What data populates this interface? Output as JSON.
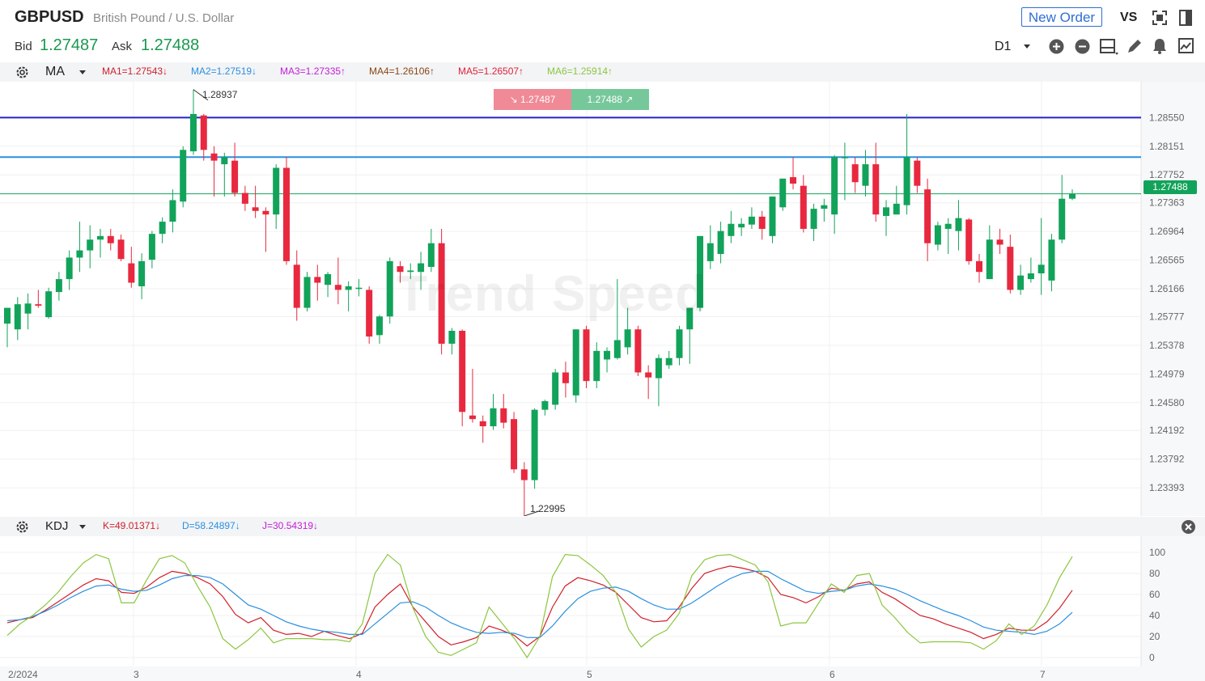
{
  "header": {
    "symbol": "GBPUSD",
    "description": "British Pound / U.S. Dollar",
    "bid_label": "Bid",
    "bid_value": "1.27487",
    "ask_label": "Ask",
    "ask_value": "1.27488",
    "new_order_label": "New Order",
    "vs_label": "VS",
    "timeframe": "D1"
  },
  "ma_bar": {
    "indicator": "MA",
    "items": [
      {
        "text": "MA1=1.27543↓",
        "color": "#d0202b"
      },
      {
        "text": "MA2=1.27519↓",
        "color": "#2a8fe0"
      },
      {
        "text": "MA3=1.27335↑",
        "color": "#c21fd4"
      },
      {
        "text": "MA4=1.26106↑",
        "color": "#8b4513"
      },
      {
        "text": "MA5=1.26507↑",
        "color": "#e0223b"
      },
      {
        "text": "MA6=1.25914↑",
        "color": "#8cc63f"
      }
    ]
  },
  "kdj_bar": {
    "indicator": "KDJ",
    "items": [
      {
        "text": "K=49.01371↓",
        "color": "#d0202b"
      },
      {
        "text": "D=58.24897↓",
        "color": "#2a8fe0"
      },
      {
        "text": "J=30.54319↓",
        "color": "#c21fd4"
      }
    ]
  },
  "price_chart": {
    "watermark": "Trend Speed",
    "sell_box": "1.27487",
    "buy_box": "1.27488",
    "last_price_label": "1.27488",
    "high_label": "1.28937",
    "low_label": "1.22995",
    "y_ticks": [
      "1.28550",
      "1.28151",
      "1.27752",
      "1.27363",
      "1.26964",
      "1.26565",
      "1.26166",
      "1.25777",
      "1.25378",
      "1.24979",
      "1.24580",
      "1.24192",
      "1.23792",
      "1.23393"
    ],
    "x_ticks": [
      "2/2024",
      "3",
      "4",
      "5",
      "6",
      "7"
    ],
    "hlines": [
      {
        "price": 1.2855,
        "color": "#2323c8"
      },
      {
        "price": 1.28,
        "color": "#2a8fe0"
      },
      {
        "price": 1.27488,
        "color": "#12a35a"
      }
    ],
    "colors": {
      "up": "#12a35a",
      "down": "#e8283f"
    }
  },
  "kdj_chart": {
    "y_ticks": [
      "100",
      "80",
      "60",
      "40",
      "20",
      "0"
    ]
  },
  "chart_data": [
    {
      "type": "candlestick",
      "title": "GBPUSD",
      "ylim": [
        1.23,
        1.2905
      ],
      "candles": [
        {
          "o": 1.2568,
          "h": 1.259,
          "l": 1.2535,
          "c": 1.259
        },
        {
          "o": 1.256,
          "h": 1.2605,
          "l": 1.2545,
          "c": 1.2595
        },
        {
          "o": 1.2582,
          "h": 1.261,
          "l": 1.256,
          "c": 1.2596
        },
        {
          "o": 1.2595,
          "h": 1.2615,
          "l": 1.259,
          "c": 1.2593
        },
        {
          "o": 1.2577,
          "h": 1.2618,
          "l": 1.2575,
          "c": 1.2613
        },
        {
          "o": 1.2612,
          "h": 1.264,
          "l": 1.26,
          "c": 1.263
        },
        {
          "o": 1.263,
          "h": 1.267,
          "l": 1.2615,
          "c": 1.266
        },
        {
          "o": 1.266,
          "h": 1.271,
          "l": 1.264,
          "c": 1.267
        },
        {
          "o": 1.267,
          "h": 1.2705,
          "l": 1.2645,
          "c": 1.2685
        },
        {
          "o": 1.2685,
          "h": 1.27,
          "l": 1.266,
          "c": 1.269
        },
        {
          "o": 1.269,
          "h": 1.27,
          "l": 1.267,
          "c": 1.268
        },
        {
          "o": 1.2685,
          "h": 1.2692,
          "l": 1.2655,
          "c": 1.2658
        },
        {
          "o": 1.2652,
          "h": 1.2675,
          "l": 1.2618,
          "c": 1.2625
        },
        {
          "o": 1.262,
          "h": 1.2666,
          "l": 1.2602,
          "c": 1.2655
        },
        {
          "o": 1.2657,
          "h": 1.2697,
          "l": 1.2645,
          "c": 1.2693
        },
        {
          "o": 1.2693,
          "h": 1.2716,
          "l": 1.268,
          "c": 1.271
        },
        {
          "o": 1.271,
          "h": 1.2755,
          "l": 1.2695,
          "c": 1.274
        },
        {
          "o": 1.2738,
          "h": 1.2815,
          "l": 1.273,
          "c": 1.281
        },
        {
          "o": 1.2808,
          "h": 1.2894,
          "l": 1.2803,
          "c": 1.286
        },
        {
          "o": 1.2858,
          "h": 1.286,
          "l": 1.2795,
          "c": 1.281
        },
        {
          "o": 1.2805,
          "h": 1.2815,
          "l": 1.2745,
          "c": 1.2795
        },
        {
          "o": 1.279,
          "h": 1.2806,
          "l": 1.2745,
          "c": 1.28
        },
        {
          "o": 1.2795,
          "h": 1.282,
          "l": 1.2745,
          "c": 1.275
        },
        {
          "o": 1.275,
          "h": 1.276,
          "l": 1.2725,
          "c": 1.2735
        },
        {
          "o": 1.273,
          "h": 1.276,
          "l": 1.2715,
          "c": 1.2725
        },
        {
          "o": 1.2725,
          "h": 1.273,
          "l": 1.2668,
          "c": 1.272
        },
        {
          "o": 1.272,
          "h": 1.279,
          "l": 1.27,
          "c": 1.2785
        },
        {
          "o": 1.2785,
          "h": 1.28,
          "l": 1.265,
          "c": 1.2655
        },
        {
          "o": 1.265,
          "h": 1.267,
          "l": 1.2572,
          "c": 1.259
        },
        {
          "o": 1.259,
          "h": 1.264,
          "l": 1.2585,
          "c": 1.2633
        },
        {
          "o": 1.2633,
          "h": 1.265,
          "l": 1.26,
          "c": 1.2625
        },
        {
          "o": 1.2622,
          "h": 1.264,
          "l": 1.2605,
          "c": 1.2637
        },
        {
          "o": 1.2622,
          "h": 1.266,
          "l": 1.2595,
          "c": 1.2615
        },
        {
          "o": 1.2615,
          "h": 1.2627,
          "l": 1.2585,
          "c": 1.262
        },
        {
          "o": 1.2618,
          "h": 1.263,
          "l": 1.2606,
          "c": 1.2618
        },
        {
          "o": 1.2615,
          "h": 1.262,
          "l": 1.254,
          "c": 1.255
        },
        {
          "o": 1.2552,
          "h": 1.258,
          "l": 1.254,
          "c": 1.2578
        },
        {
          "o": 1.2578,
          "h": 1.266,
          "l": 1.2568,
          "c": 1.2655
        },
        {
          "o": 1.2648,
          "h": 1.2655,
          "l": 1.2625,
          "c": 1.264
        },
        {
          "o": 1.264,
          "h": 1.2652,
          "l": 1.263,
          "c": 1.2642
        },
        {
          "o": 1.264,
          "h": 1.2668,
          "l": 1.2615,
          "c": 1.2652
        },
        {
          "o": 1.2647,
          "h": 1.27,
          "l": 1.264,
          "c": 1.268
        },
        {
          "o": 1.268,
          "h": 1.27,
          "l": 1.2525,
          "c": 1.254
        },
        {
          "o": 1.254,
          "h": 1.2562,
          "l": 1.2525,
          "c": 1.2558
        },
        {
          "o": 1.2558,
          "h": 1.256,
          "l": 1.2425,
          "c": 1.2445
        },
        {
          "o": 1.244,
          "h": 1.2505,
          "l": 1.243,
          "c": 1.2435
        },
        {
          "o": 1.2432,
          "h": 1.244,
          "l": 1.2402,
          "c": 1.2425
        },
        {
          "o": 1.2425,
          "h": 1.247,
          "l": 1.242,
          "c": 1.245
        },
        {
          "o": 1.245,
          "h": 1.247,
          "l": 1.2422,
          "c": 1.243
        },
        {
          "o": 1.2435,
          "h": 1.2445,
          "l": 1.236,
          "c": 1.2365
        },
        {
          "o": 1.2365,
          "h": 1.2375,
          "l": 1.23,
          "c": 1.235
        },
        {
          "o": 1.235,
          "h": 1.245,
          "l": 1.2338,
          "c": 1.2448
        },
        {
          "o": 1.2448,
          "h": 1.2462,
          "l": 1.244,
          "c": 1.246
        },
        {
          "o": 1.2455,
          "h": 1.2505,
          "l": 1.2448,
          "c": 1.25
        },
        {
          "o": 1.25,
          "h": 1.2515,
          "l": 1.2465,
          "c": 1.2485
        },
        {
          "o": 1.2468,
          "h": 1.256,
          "l": 1.2458,
          "c": 1.256
        },
        {
          "o": 1.256,
          "h": 1.2565,
          "l": 1.2478,
          "c": 1.2488
        },
        {
          "o": 1.2488,
          "h": 1.2542,
          "l": 1.2478,
          "c": 1.253
        },
        {
          "o": 1.2518,
          "h": 1.2535,
          "l": 1.25,
          "c": 1.253
        },
        {
          "o": 1.252,
          "h": 1.263,
          "l": 1.2518,
          "c": 1.2545
        },
        {
          "o": 1.2535,
          "h": 1.259,
          "l": 1.2525,
          "c": 1.256
        },
        {
          "o": 1.256,
          "h": 1.2565,
          "l": 1.2495,
          "c": 1.25
        },
        {
          "o": 1.25,
          "h": 1.251,
          "l": 1.2463,
          "c": 1.2493
        },
        {
          "o": 1.2492,
          "h": 1.2525,
          "l": 1.2453,
          "c": 1.252
        },
        {
          "o": 1.251,
          "h": 1.253,
          "l": 1.2505,
          "c": 1.252
        },
        {
          "o": 1.252,
          "h": 1.2565,
          "l": 1.251,
          "c": 1.256
        },
        {
          "o": 1.256,
          "h": 1.259,
          "l": 1.2512,
          "c": 1.259
        },
        {
          "o": 1.259,
          "h": 1.269,
          "l": 1.2585,
          "c": 1.269
        },
        {
          "o": 1.2655,
          "h": 1.2705,
          "l": 1.2644,
          "c": 1.268
        },
        {
          "o": 1.2665,
          "h": 1.271,
          "l": 1.2652,
          "c": 1.2697
        },
        {
          "o": 1.269,
          "h": 1.2725,
          "l": 1.268,
          "c": 1.2707
        },
        {
          "o": 1.2702,
          "h": 1.2715,
          "l": 1.269,
          "c": 1.2707
        },
        {
          "o": 1.2706,
          "h": 1.273,
          "l": 1.27,
          "c": 1.2717
        },
        {
          "o": 1.2717,
          "h": 1.2725,
          "l": 1.2685,
          "c": 1.27
        },
        {
          "o": 1.269,
          "h": 1.274,
          "l": 1.268,
          "c": 1.2745
        },
        {
          "o": 1.273,
          "h": 1.277,
          "l": 1.2725,
          "c": 1.277
        },
        {
          "o": 1.2772,
          "h": 1.28,
          "l": 1.2755,
          "c": 1.2763
        },
        {
          "o": 1.276,
          "h": 1.2775,
          "l": 1.2695,
          "c": 1.27
        },
        {
          "o": 1.27,
          "h": 1.2735,
          "l": 1.2683,
          "c": 1.2728
        },
        {
          "o": 1.2728,
          "h": 1.2742,
          "l": 1.271,
          "c": 1.2733
        },
        {
          "o": 1.272,
          "h": 1.2803,
          "l": 1.2693,
          "c": 1.28
        },
        {
          "o": 1.28,
          "h": 1.282,
          "l": 1.274,
          "c": 1.28
        },
        {
          "o": 1.279,
          "h": 1.28,
          "l": 1.275,
          "c": 1.2765
        },
        {
          "o": 1.276,
          "h": 1.281,
          "l": 1.2745,
          "c": 1.279
        },
        {
          "o": 1.279,
          "h": 1.282,
          "l": 1.271,
          "c": 1.272
        },
        {
          "o": 1.2718,
          "h": 1.274,
          "l": 1.269,
          "c": 1.273
        },
        {
          "o": 1.272,
          "h": 1.276,
          "l": 1.272,
          "c": 1.2735
        },
        {
          "o": 1.2733,
          "h": 1.286,
          "l": 1.272,
          "c": 1.28
        },
        {
          "o": 1.2795,
          "h": 1.28,
          "l": 1.275,
          "c": 1.276
        },
        {
          "o": 1.2755,
          "h": 1.277,
          "l": 1.2655,
          "c": 1.268
        },
        {
          "o": 1.2678,
          "h": 1.271,
          "l": 1.267,
          "c": 1.2705
        },
        {
          "o": 1.27,
          "h": 1.2715,
          "l": 1.2665,
          "c": 1.2707
        },
        {
          "o": 1.2697,
          "h": 1.274,
          "l": 1.267,
          "c": 1.2715
        },
        {
          "o": 1.2713,
          "h": 1.2715,
          "l": 1.265,
          "c": 1.2655
        },
        {
          "o": 1.2655,
          "h": 1.2665,
          "l": 1.2625,
          "c": 1.264
        },
        {
          "o": 1.263,
          "h": 1.2705,
          "l": 1.263,
          "c": 1.2685
        },
        {
          "o": 1.2685,
          "h": 1.27,
          "l": 1.2665,
          "c": 1.2678
        },
        {
          "o": 1.2675,
          "h": 1.2692,
          "l": 1.261,
          "c": 1.2615
        },
        {
          "o": 1.2615,
          "h": 1.265,
          "l": 1.2608,
          "c": 1.2635
        },
        {
          "o": 1.263,
          "h": 1.266,
          "l": 1.2625,
          "c": 1.2638
        },
        {
          "o": 1.2638,
          "h": 1.2715,
          "l": 1.2608,
          "c": 1.265
        },
        {
          "o": 1.2628,
          "h": 1.2693,
          "l": 1.2613,
          "c": 1.2685
        },
        {
          "o": 1.2685,
          "h": 1.2775,
          "l": 1.268,
          "c": 1.2742
        },
        {
          "o": 1.2742,
          "h": 1.2755,
          "l": 1.274,
          "c": 1.2749
        }
      ]
    },
    {
      "type": "line",
      "title": "KDJ",
      "ylim": [
        0,
        100
      ],
      "series": [
        {
          "name": "K",
          "color": "#d0202b",
          "values": [
            33,
            36,
            38,
            45,
            53,
            61,
            69,
            75,
            73,
            62,
            61,
            67,
            76,
            82,
            80,
            76,
            70,
            58,
            41,
            33,
            38,
            26,
            22,
            23,
            20,
            25,
            21,
            18,
            23,
            48,
            60,
            70,
            48,
            34,
            20,
            12,
            15,
            19,
            30,
            26,
            21,
            11,
            20,
            48,
            68,
            76,
            73,
            69,
            62,
            50,
            38,
            34,
            35,
            48,
            66,
            80,
            84,
            87,
            85,
            82,
            76,
            60,
            57,
            52,
            58,
            66,
            64,
            70,
            72,
            62,
            56,
            48,
            40,
            37,
            32,
            28,
            24,
            18,
            22,
            28,
            26,
            26,
            34,
            47,
            64
          ]
        },
        {
          "name": "D",
          "color": "#2a8fe0",
          "values": [
            35,
            36,
            39,
            44,
            50,
            57,
            63,
            68,
            69,
            65,
            63,
            64,
            69,
            75,
            78,
            78,
            76,
            70,
            60,
            50,
            46,
            40,
            34,
            30,
            27,
            25,
            24,
            22,
            22,
            32,
            42,
            52,
            53,
            48,
            40,
            33,
            28,
            24,
            23,
            24,
            23,
            19,
            19,
            30,
            44,
            56,
            63,
            66,
            67,
            63,
            56,
            50,
            46,
            46,
            52,
            60,
            68,
            75,
            80,
            82,
            82,
            75,
            69,
            63,
            61,
            63,
            64,
            68,
            70,
            68,
            65,
            60,
            54,
            49,
            44,
            40,
            35,
            29,
            26,
            25,
            24,
            22,
            25,
            32,
            43
          ]
        },
        {
          "name": "J",
          "color": "#8cc63f",
          "values": [
            21,
            32,
            40,
            50,
            62,
            77,
            90,
            98,
            94,
            52,
            52,
            74,
            94,
            97,
            90,
            68,
            48,
            18,
            8,
            17,
            28,
            14,
            18,
            18,
            18,
            17,
            17,
            15,
            32,
            80,
            98,
            88,
            47,
            20,
            5,
            2,
            8,
            14,
            48,
            33,
            18,
            0,
            20,
            77,
            98,
            97,
            88,
            78,
            62,
            27,
            10,
            20,
            26,
            42,
            78,
            93,
            97,
            98,
            93,
            88,
            72,
            30,
            33,
            33,
            52,
            70,
            62,
            78,
            80,
            50,
            38,
            24,
            14,
            15,
            15,
            15,
            14,
            8,
            16,
            32,
            22,
            30,
            50,
            76,
            96
          ]
        }
      ]
    }
  ]
}
